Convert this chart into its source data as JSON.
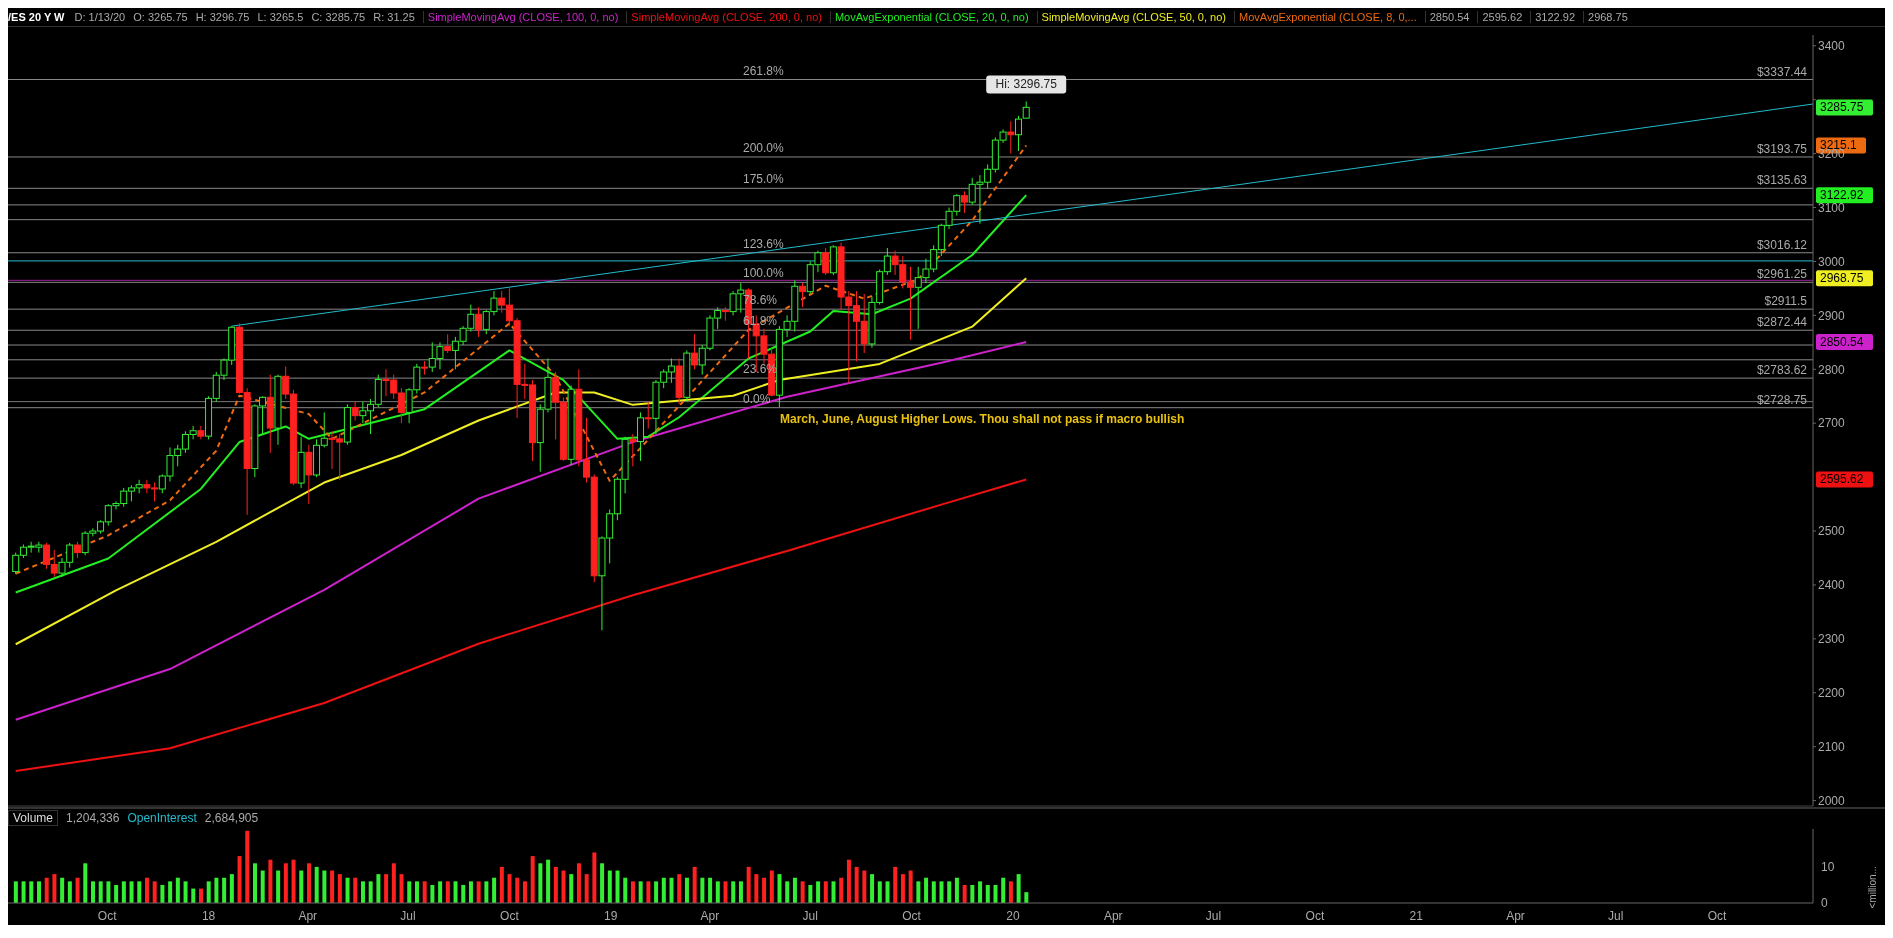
{
  "chart_data": [
    {
      "type": "candlestick",
      "title": "/ES 20 Y W",
      "legend": "top",
      "tick_labels": "y",
      "xlim": [
        "2017-07-03",
        "2021-12-27"
      ],
      "ylim": [
        1990,
        3420
      ],
      "yticks": [
        2000,
        2100,
        2200,
        2300,
        2400,
        2500,
        2700,
        2800,
        2900,
        3000,
        3100,
        3200,
        {
          "value": 3300,
          "label": null
        },
        3400
      ],
      "x": [
        "2017-07-10",
        "2017-07-17",
        "2017-07-24",
        "2017-07-31",
        "2017-08-07",
        "2017-08-14",
        "2017-08-21",
        "2017-08-28",
        "2017-09-04",
        "2017-09-11",
        "2017-09-18",
        "2017-09-25",
        "2017-10-02",
        "2017-10-09",
        "2017-10-16",
        "2017-10-23",
        "2017-10-30",
        "2017-11-06",
        "2017-11-13",
        "2017-11-20",
        "2017-11-27",
        "2017-12-04",
        "2017-12-11",
        "2017-12-18",
        "2017-12-25",
        "2018-01-01",
        "2018-01-08",
        "2018-01-15",
        "2018-01-22",
        "2018-01-29",
        "2018-02-05",
        "2018-02-12",
        "2018-02-19",
        "2018-02-26",
        "2018-03-05",
        "2018-03-12",
        "2018-03-19",
        "2018-03-26",
        "2018-04-02",
        "2018-04-09",
        "2018-04-16",
        "2018-04-23",
        "2018-04-30",
        "2018-05-07",
        "2018-05-14",
        "2018-05-21",
        "2018-05-28",
        "2018-06-04",
        "2018-06-11",
        "2018-06-18",
        "2018-06-25",
        "2018-07-02",
        "2018-07-09",
        "2018-07-16",
        "2018-07-23",
        "2018-07-30",
        "2018-08-06",
        "2018-08-13",
        "2018-08-20",
        "2018-08-27",
        "2018-09-03",
        "2018-09-10",
        "2018-09-17",
        "2018-09-24",
        "2018-10-01",
        "2018-10-08",
        "2018-10-15",
        "2018-10-22",
        "2018-10-29",
        "2018-11-05",
        "2018-11-12",
        "2018-11-19",
        "2018-11-26",
        "2018-12-03",
        "2018-12-10",
        "2018-12-17",
        "2018-12-24",
        "2018-12-31",
        "2019-01-07",
        "2019-01-14",
        "2019-01-21",
        "2019-01-28",
        "2019-02-04",
        "2019-02-11",
        "2019-02-18",
        "2019-02-25",
        "2019-03-04",
        "2019-03-11",
        "2019-03-18",
        "2019-03-25",
        "2019-04-01",
        "2019-04-08",
        "2019-04-15",
        "2019-04-22",
        "2019-04-29",
        "2019-05-06",
        "2019-05-13",
        "2019-05-20",
        "2019-05-27",
        "2019-06-03",
        "2019-06-10",
        "2019-06-17",
        "2019-06-24",
        "2019-07-01",
        "2019-07-08",
        "2019-07-15",
        "2019-07-22",
        "2019-07-29",
        "2019-08-05",
        "2019-08-12",
        "2019-08-19",
        "2019-08-26",
        "2019-09-02",
        "2019-09-09",
        "2019-09-16",
        "2019-09-23",
        "2019-09-30",
        "2019-10-07",
        "2019-10-14",
        "2019-10-21",
        "2019-10-28",
        "2019-11-04",
        "2019-11-11",
        "2019-11-18",
        "2019-11-25",
        "2019-12-02",
        "2019-12-09",
        "2019-12-16",
        "2019-12-23",
        "2019-12-30",
        "2020-01-06",
        "2020-01-13"
      ],
      "ohlc": [
        [
          2425,
          2460,
          2420,
          2455
        ],
        [
          2455,
          2475,
          2450,
          2470
        ],
        [
          2470,
          2480,
          2460,
          2472
        ],
        [
          2470,
          2480,
          2460,
          2474
        ],
        [
          2474,
          2478,
          2430,
          2438
        ],
        [
          2438,
          2465,
          2415,
          2422
        ],
        [
          2422,
          2450,
          2415,
          2442
        ],
        [
          2442,
          2478,
          2432,
          2474
        ],
        [
          2474,
          2480,
          2450,
          2460
        ],
        [
          2460,
          2500,
          2455,
          2496
        ],
        [
          2496,
          2505,
          2490,
          2500
        ],
        [
          2500,
          2520,
          2495,
          2517
        ],
        [
          2517,
          2550,
          2510,
          2547
        ],
        [
          2547,
          2555,
          2540,
          2551
        ],
        [
          2551,
          2580,
          2545,
          2574
        ],
        [
          2574,
          2585,
          2555,
          2580
        ],
        [
          2580,
          2595,
          2570,
          2586
        ],
        [
          2586,
          2595,
          2570,
          2580
        ],
        [
          2580,
          2590,
          2555,
          2578
        ],
        [
          2578,
          2605,
          2570,
          2602
        ],
        [
          2602,
          2655,
          2592,
          2640
        ],
        [
          2640,
          2660,
          2620,
          2652
        ],
        [
          2652,
          2685,
          2645,
          2679
        ],
        [
          2679,
          2695,
          2670,
          2686
        ],
        [
          2686,
          2695,
          2670,
          2676
        ],
        [
          2676,
          2750,
          2670,
          2746
        ],
        [
          2746,
          2795,
          2740,
          2789
        ],
        [
          2789,
          2820,
          2780,
          2817
        ],
        [
          2817,
          2880,
          2808,
          2878
        ],
        [
          2878,
          2885,
          2755,
          2757
        ],
        [
          2757,
          2765,
          2530,
          2616
        ],
        [
          2616,
          2735,
          2600,
          2732
        ],
        [
          2732,
          2750,
          2680,
          2748
        ],
        [
          2748,
          2790,
          2645,
          2691
        ],
        [
          2691,
          2790,
          2660,
          2787
        ],
        [
          2787,
          2805,
          2745,
          2754
        ],
        [
          2754,
          2762,
          2585,
          2589
        ],
        [
          2589,
          2675,
          2580,
          2646
        ],
        [
          2646,
          2660,
          2550,
          2604
        ],
        [
          2604,
          2670,
          2600,
          2659
        ],
        [
          2659,
          2720,
          2655,
          2672
        ],
        [
          2672,
          2685,
          2615,
          2671
        ],
        [
          2671,
          2680,
          2595,
          2665
        ],
        [
          2665,
          2735,
          2660,
          2729
        ],
        [
          2729,
          2740,
          2705,
          2714
        ],
        [
          2714,
          2740,
          2700,
          2723
        ],
        [
          2723,
          2745,
          2680,
          2735
        ],
        [
          2735,
          2790,
          2730,
          2781
        ],
        [
          2781,
          2800,
          2750,
          2780
        ],
        [
          2780,
          2790,
          2745,
          2756
        ],
        [
          2756,
          2765,
          2700,
          2720
        ],
        [
          2720,
          2765,
          2700,
          2762
        ],
        [
          2762,
          2810,
          2755,
          2804
        ],
        [
          2804,
          2815,
          2790,
          2804
        ],
        [
          2804,
          2850,
          2795,
          2820
        ],
        [
          2820,
          2850,
          2800,
          2842
        ],
        [
          2842,
          2865,
          2830,
          2835
        ],
        [
          2835,
          2860,
          2800,
          2852
        ],
        [
          2852,
          2880,
          2845,
          2876
        ],
        [
          2876,
          2920,
          2870,
          2902
        ],
        [
          2902,
          2915,
          2860,
          2874
        ],
        [
          2874,
          2910,
          2865,
          2907
        ],
        [
          2907,
          2945,
          2900,
          2932
        ],
        [
          2932,
          2945,
          2905,
          2919
        ],
        [
          2919,
          2950,
          2880,
          2890
        ],
        [
          2890,
          2895,
          2710,
          2772
        ],
        [
          2772,
          2810,
          2745,
          2771
        ],
        [
          2771,
          2780,
          2630,
          2664
        ],
        [
          2664,
          2735,
          2610,
          2726
        ],
        [
          2726,
          2820,
          2720,
          2785
        ],
        [
          2785,
          2795,
          2670,
          2739
        ],
        [
          2739,
          2748,
          2630,
          2633
        ],
        [
          2633,
          2770,
          2622,
          2763
        ],
        [
          2763,
          2800,
          2620,
          2632
        ],
        [
          2632,
          2710,
          2590,
          2600
        ],
        [
          2600,
          2605,
          2405,
          2417
        ],
        [
          2417,
          2490,
          2316,
          2487
        ],
        [
          2487,
          2540,
          2440,
          2532
        ],
        [
          2532,
          2600,
          2520,
          2596
        ],
        [
          2596,
          2675,
          2570,
          2670
        ],
        [
          2670,
          2680,
          2620,
          2666
        ],
        [
          2666,
          2720,
          2630,
          2710
        ],
        [
          2710,
          2740,
          2690,
          2709
        ],
        [
          2709,
          2780,
          2680,
          2776
        ],
        [
          2776,
          2800,
          2765,
          2795
        ],
        [
          2795,
          2820,
          2775,
          2806
        ],
        [
          2806,
          2820,
          2735,
          2748
        ],
        [
          2748,
          2835,
          2740,
          2830
        ],
        [
          2830,
          2865,
          2800,
          2808
        ],
        [
          2808,
          2845,
          2790,
          2839
        ],
        [
          2839,
          2900,
          2835,
          2895
        ],
        [
          2895,
          2915,
          2875,
          2909
        ],
        [
          2909,
          2915,
          2890,
          2907
        ],
        [
          2907,
          2945,
          2900,
          2940
        ],
        [
          2940,
          2960,
          2905,
          2947
        ],
        [
          2947,
          2950,
          2820,
          2884
        ],
        [
          2884,
          2900,
          2795,
          2862
        ],
        [
          2862,
          2875,
          2810,
          2828
        ],
        [
          2828,
          2840,
          2750,
          2752
        ],
        [
          2752,
          2880,
          2730,
          2874
        ],
        [
          2874,
          2900,
          2860,
          2889
        ],
        [
          2889,
          2965,
          2870,
          2954
        ],
        [
          2954,
          2960,
          2915,
          2944
        ],
        [
          2944,
          3000,
          2940,
          2994
        ],
        [
          2994,
          3020,
          2980,
          3016
        ],
        [
          3016,
          3025,
          2975,
          2979
        ],
        [
          2979,
          3030,
          2975,
          3027
        ],
        [
          3027,
          3035,
          2910,
          2934
        ],
        [
          2934,
          2945,
          2775,
          2918
        ],
        [
          2918,
          2945,
          2815,
          2889
        ],
        [
          2889,
          2940,
          2830,
          2847
        ],
        [
          2847,
          2935,
          2840,
          2924
        ],
        [
          2924,
          2985,
          2920,
          2981
        ],
        [
          2981,
          3025,
          2975,
          3010
        ],
        [
          3010,
          3020,
          2975,
          2994
        ],
        [
          2994,
          3010,
          2950,
          2962
        ],
        [
          2962,
          2990,
          2855,
          2952
        ],
        [
          2952,
          2990,
          2875,
          2970
        ],
        [
          2970,
          3005,
          2960,
          2986
        ],
        [
          2986,
          3030,
          2980,
          3022
        ],
        [
          3022,
          3070,
          3010,
          3067
        ],
        [
          3067,
          3100,
          3060,
          3093
        ],
        [
          3093,
          3125,
          3085,
          3122
        ],
        [
          3122,
          3130,
          3090,
          3110
        ],
        [
          3110,
          3155,
          3105,
          3143
        ],
        [
          3143,
          3160,
          3070,
          3147
        ],
        [
          3147,
          3180,
          3135,
          3171
        ],
        [
          3171,
          3230,
          3165,
          3225
        ],
        [
          3225,
          3245,
          3220,
          3240
        ],
        [
          3240,
          3260,
          3200,
          3235
        ],
        [
          3235,
          3270,
          3205,
          3264
        ],
        [
          3265.75,
          3296.75,
          3265.5,
          3285.75
        ]
      ],
      "colors": [
        "#33ee33",
        "#33ee33",
        "#33ee33",
        "#33ee33",
        "#ff2020",
        "#ff2020",
        "#33ee33",
        "#33ee33",
        "#ff2020",
        "#33ee33",
        "#33ee33",
        "#33ee33",
        "#33ee33",
        "#33ee33",
        "#33ee33",
        "#33ee33",
        "#33ee33",
        "#ff2020",
        "#ff2020",
        "#33ee33",
        "#33ee33",
        "#33ee33",
        "#33ee33",
        "#33ee33",
        "#ff2020",
        "#33ee33",
        "#33ee33",
        "#33ee33",
        "#33ee33",
        "#ff2020",
        "#ff2020",
        "#33ee33",
        "#33ee33",
        "#ff2020",
        "#33ee33",
        "#ff2020",
        "#ff2020",
        "#33ee33",
        "#ff2020",
        "#33ee33",
        "#33ee33",
        "#ff2020",
        "#ff2020",
        "#33ee33",
        "#ff2020",
        "#33ee33",
        "#33ee33",
        "#33ee33",
        "#ff2020",
        "#ff2020",
        "#ff2020",
        "#33ee33",
        "#33ee33",
        "#ff2020",
        "#33ee33",
        "#33ee33",
        "#ff2020",
        "#33ee33",
        "#33ee33",
        "#33ee33",
        "#ff2020",
        "#33ee33",
        "#33ee33",
        "#ff2020",
        "#ff2020",
        "#ff2020",
        "#ff2020",
        "#ff2020",
        "#33ee33",
        "#33ee33",
        "#ff2020",
        "#ff2020",
        "#33ee33",
        "#ff2020",
        "#ff2020",
        "#ff2020",
        "#33ee33",
        "#33ee33",
        "#33ee33",
        "#33ee33",
        "#ff2020",
        "#33ee33",
        "#ff2020",
        "#33ee33",
        "#33ee33",
        "#33ee33",
        "#ff2020",
        "#33ee33",
        "#ff2020",
        "#33ee33",
        "#33ee33",
        "#33ee33",
        "#ff2020",
        "#33ee33",
        "#33ee33",
        "#ff2020",
        "#ff2020",
        "#ff2020",
        "#ff2020",
        "#33ee33",
        "#33ee33",
        "#33ee33",
        "#ff2020",
        "#33ee33",
        "#33ee33",
        "#ff2020",
        "#33ee33",
        "#ff2020",
        "#ff2020",
        "#ff2020",
        "#ff2020",
        "#33ee33",
        "#33ee33",
        "#33ee33",
        "#ff2020",
        "#ff2020",
        "#ff2020",
        "#33ee33",
        "#33ee33",
        "#33ee33",
        "#33ee33",
        "#33ee33",
        "#33ee33",
        "#ff2020",
        "#33ee33",
        "#33ee33",
        "#33ee33",
        "#33ee33",
        "#33ee33",
        "#ff2020",
        "#33ee33",
        "#33ee33"
      ],
      "value_labels": [
        null,
        null,
        null,
        null,
        null,
        null,
        null,
        null,
        null,
        null,
        null,
        null,
        null,
        null,
        null,
        null,
        null,
        null,
        null,
        null,
        null,
        null,
        null,
        null,
        null,
        null,
        null,
        null,
        null,
        null,
        null,
        null,
        null,
        null,
        null,
        null,
        null,
        null,
        null,
        null,
        null,
        null,
        null,
        null,
        null,
        null,
        null,
        null,
        null,
        null,
        null,
        null,
        null,
        null,
        null,
        null,
        null,
        null,
        null,
        null,
        null,
        null,
        null,
        null,
        null,
        null,
        null,
        null,
        null,
        null,
        null,
        null,
        null,
        null,
        null,
        null,
        null,
        null,
        null,
        null,
        null,
        null,
        null,
        null,
        null,
        null,
        null,
        null,
        null,
        null,
        null,
        null,
        null,
        null,
        null,
        null,
        null,
        null,
        null,
        null,
        null,
        null,
        null,
        null,
        null,
        null,
        null,
        null,
        null,
        null,
        null,
        null,
        null,
        null,
        null,
        null,
        null,
        null,
        null,
        null,
        null,
        null,
        null,
        null,
        null,
        null,
        null,
        null,
        null,
        null,
        null,
        "3285.75"
      ],
      "series": [
        {
          "type": "line",
          "name": "SimpleMovingAvg (CLOSE, 100, 0, no)",
          "color": "#cc22cc",
          "x": [
            "2017-07-10",
            "2017-11-27",
            "2018-04-16",
            "2018-09-03",
            "2019-01-21",
            "2019-06-10",
            "2019-10-28",
            "2020-01-13"
          ],
          "values": [
            2150,
            2244,
            2391,
            2560,
            2665,
            2749,
            2812,
            2850.54
          ]
        },
        {
          "type": "line",
          "name": "SimpleMovingAvg (CLOSE, 200, 0, no)",
          "color": "#ee1111",
          "x": [
            "2017-07-10",
            "2017-11-27",
            "2018-04-16",
            "2018-09-03",
            "2019-01-21",
            "2019-06-10",
            "2019-10-28",
            "2020-01-13"
          ],
          "values": [
            2055,
            2097,
            2181,
            2291,
            2381,
            2463,
            2549,
            2595.62
          ]
        },
        {
          "type": "line",
          "name": "MovAvgExponential (CLOSE, 20, 0, no)",
          "color": "#22ee22",
          "x": [
            "2017-07-10",
            "2017-10-02",
            "2017-12-25",
            "2018-01-29",
            "2018-03-12",
            "2018-04-02",
            "2018-07-16",
            "2018-10-01",
            "2018-11-19",
            "2019-01-07",
            "2019-02-04",
            "2019-03-04",
            "2019-05-06",
            "2019-07-01",
            "2019-07-22",
            "2019-08-26",
            "2019-09-30",
            "2019-11-25",
            "2020-01-13"
          ],
          "values": [
            2386,
            2449,
            2578,
            2665,
            2694,
            2671,
            2726,
            2835,
            2780,
            2671,
            2675,
            2711,
            2820,
            2870,
            2908,
            2902,
            2931,
            3012,
            3122.92
          ]
        },
        {
          "type": "line",
          "name": "SimpleMovingAvg (CLOSE, 50, 0, no)",
          "color": "#eeee22",
          "x": [
            "2017-07-10",
            "2017-10-09",
            "2018-01-08",
            "2018-04-16",
            "2018-06-25",
            "2018-09-03",
            "2018-11-12",
            "2018-12-17",
            "2019-01-21",
            "2019-04-22",
            "2019-06-03",
            "2019-09-02",
            "2019-11-25",
            "2020-01-13"
          ],
          "values": [
            2290,
            2390,
            2480,
            2590,
            2641,
            2705,
            2757,
            2757,
            2734,
            2751,
            2780,
            2810,
            2879,
            2968.75
          ]
        },
        {
          "type": "line",
          "name": "MovAvgExponential (CLOSE, 8, 0,...",
          "color": "#ee6a10",
          "line_style": "dashed",
          "x": [
            "2017-07-10",
            "2017-10-02",
            "2017-11-27",
            "2018-01-08",
            "2018-01-29",
            "2018-04-02",
            "2018-04-23",
            "2018-07-16",
            "2018-10-01",
            "2018-11-12",
            "2018-12-31",
            "2019-01-28",
            "2019-03-18",
            "2019-05-06",
            "2019-07-15",
            "2019-08-19",
            "2019-10-07",
            "2019-11-25",
            "2020-01-13"
          ],
          "values": [
            2421,
            2492,
            2557,
            2649,
            2751,
            2717,
            2671,
            2757,
            2885,
            2787,
            2593,
            2654,
            2763,
            2873,
            2955,
            2931,
            2967,
            3076,
            3215.1
          ]
        },
        {
          "type": "line",
          "color": "#22bbcc",
          "x": [
            "2018-01-22",
            "2021-12-27"
          ],
          "values": [
            2880,
            3292
          ]
        }
      ],
      "ref_lines": [
        {
          "axis": "y",
          "value": 3337.44,
          "label": "$3337.44",
          "color": "#888888"
        },
        {
          "axis": "y",
          "value": 3193.75,
          "label": "$3193.75",
          "color": "#888888"
        },
        {
          "axis": "y",
          "value": 3135.63,
          "label": "$3135.63",
          "color": "#888888"
        },
        {
          "axis": "y",
          "value": 3104.9,
          "color": "#888888"
        },
        {
          "axis": "y",
          "value": 3077.5,
          "color": "#888888"
        },
        {
          "axis": "y",
          "value": 3016.12,
          "label": "$3016.12",
          "color": "#888888"
        },
        {
          "axis": "y",
          "value": 3001,
          "color": "#22bbcc"
        },
        {
          "axis": "y",
          "value": 2965,
          "color": "#a020a0"
        },
        {
          "axis": "y",
          "value": 2961.25,
          "label": "$2961.25",
          "color": "#888888"
        },
        {
          "axis": "y",
          "value": 2911.5,
          "label": "$2911.5",
          "color": "#888888"
        },
        {
          "axis": "y",
          "value": 2872.44,
          "label": "$2872.44",
          "color": "#888888"
        },
        {
          "axis": "y",
          "value": 2845,
          "color": "#888888"
        },
        {
          "axis": "y",
          "value": 2817.6,
          "color": "#888888"
        },
        {
          "axis": "y",
          "value": 2783.62,
          "label": "$2783.62",
          "color": "#888888"
        },
        {
          "axis": "y",
          "value": 2740,
          "color": "#777777"
        },
        {
          "axis": "y",
          "value": 2728.75,
          "label": "$2728.75",
          "color": "#888888"
        }
      ],
      "annotations": [
        "D: 1/13/20",
        "O: 3265.75",
        "H: 3296.75",
        "L: 3265.5",
        "C: 3285.75",
        "R: 31.25",
        "2850.54",
        "2595.62",
        "3122.92",
        "2968.75",
        {
          "text": "261.8%",
          "y": 3337.44
        },
        {
          "text": "200.0%",
          "y": 3193.75
        },
        {
          "text": "175.0%",
          "y": 3135.63
        },
        {
          "text": "123.6%",
          "y": 3016.12
        },
        {
          "text": "100.0%",
          "y": 2961.25
        },
        {
          "text": "78.6%",
          "y": 2911.5
        },
        {
          "text": "61.8%",
          "y": 2872.44
        },
        {
          "text": "23.6%",
          "y": 2783.62
        },
        {
          "text": "0.0%",
          "y": 2728.75
        },
        {
          "text": "Hi: 3296.75",
          "x": "2020-01-13",
          "y": 3296.75
        },
        "March, June, August Higher Lows. Thou shall not pass if macro bullish",
        "2850.54",
        "2595.62",
        "3122.92",
        "2968.75",
        "3215.1"
      ]
    },
    {
      "type": "bar",
      "ylabel": "<million...",
      "xlim": [
        "2017-07-03",
        "2021-12-27"
      ],
      "xticks": [
        {
          "value": "2017-10-01",
          "label": "Oct"
        },
        {
          "value": "2018-01-01",
          "label": "18"
        },
        {
          "value": "2018-04-01",
          "label": "Apr"
        },
        {
          "value": "2018-07-01",
          "label": "Jul"
        },
        {
          "value": "2018-10-01",
          "label": "Oct"
        },
        {
          "value": "2019-01-01",
          "label": "19"
        },
        {
          "value": "2019-04-01",
          "label": "Apr"
        },
        {
          "value": "2019-07-01",
          "label": "Jul"
        },
        {
          "value": "2019-10-01",
          "label": "Oct"
        },
        {
          "value": "2020-01-01",
          "label": "20"
        },
        {
          "value": "2020-04-01",
          "label": "Apr"
        },
        {
          "value": "2020-07-01",
          "label": "Jul"
        },
        {
          "value": "2020-10-01",
          "label": "Oct"
        },
        {
          "value": "2021-01-01",
          "label": "21"
        },
        {
          "value": "2021-04-01",
          "label": "Apr"
        },
        {
          "value": "2021-07-01",
          "label": "Jul"
        },
        {
          "value": "2021-10-01",
          "label": "Oct"
        }
      ],
      "ylim": [
        0,
        20.5
      ],
      "yticks": [
        0,
        10
      ],
      "x": [
        "2017-07-10",
        "2017-07-17",
        "2017-07-24",
        "2017-07-31",
        "2017-08-07",
        "2017-08-14",
        "2017-08-21",
        "2017-08-28",
        "2017-09-04",
        "2017-09-11",
        "2017-09-18",
        "2017-09-25",
        "2017-10-02",
        "2017-10-09",
        "2017-10-16",
        "2017-10-23",
        "2017-10-30",
        "2017-11-06",
        "2017-11-13",
        "2017-11-20",
        "2017-11-27",
        "2017-12-04",
        "2017-12-11",
        "2017-12-18",
        "2017-12-25",
        "2018-01-01",
        "2018-01-08",
        "2018-01-15",
        "2018-01-22",
        "2018-01-29",
        "2018-02-05",
        "2018-02-12",
        "2018-02-19",
        "2018-02-26",
        "2018-03-05",
        "2018-03-12",
        "2018-03-19",
        "2018-03-26",
        "2018-04-02",
        "2018-04-09",
        "2018-04-16",
        "2018-04-23",
        "2018-04-30",
        "2018-05-07",
        "2018-05-14",
        "2018-05-21",
        "2018-05-28",
        "2018-06-04",
        "2018-06-11",
        "2018-06-18",
        "2018-06-25",
        "2018-07-02",
        "2018-07-09",
        "2018-07-16",
        "2018-07-23",
        "2018-07-30",
        "2018-08-06",
        "2018-08-13",
        "2018-08-20",
        "2018-08-27",
        "2018-09-03",
        "2018-09-10",
        "2018-09-17",
        "2018-09-24",
        "2018-10-01",
        "2018-10-08",
        "2018-10-15",
        "2018-10-22",
        "2018-10-29",
        "2018-11-05",
        "2018-11-12",
        "2018-11-19",
        "2018-11-26",
        "2018-12-03",
        "2018-12-10",
        "2018-12-17",
        "2018-12-24",
        "2018-12-31",
        "2019-01-07",
        "2019-01-14",
        "2019-01-21",
        "2019-01-28",
        "2019-02-04",
        "2019-02-11",
        "2019-02-18",
        "2019-02-25",
        "2019-03-04",
        "2019-03-11",
        "2019-03-18",
        "2019-03-25",
        "2019-04-01",
        "2019-04-08",
        "2019-04-15",
        "2019-04-22",
        "2019-04-29",
        "2019-05-06",
        "2019-05-13",
        "2019-05-20",
        "2019-05-27",
        "2019-06-03",
        "2019-06-10",
        "2019-06-17",
        "2019-06-24",
        "2019-07-01",
        "2019-07-08",
        "2019-07-15",
        "2019-07-22",
        "2019-07-29",
        "2019-08-05",
        "2019-08-12",
        "2019-08-19",
        "2019-08-26",
        "2019-09-02",
        "2019-09-09",
        "2019-09-16",
        "2019-09-23",
        "2019-09-30",
        "2019-10-07",
        "2019-10-14",
        "2019-10-21",
        "2019-10-28",
        "2019-11-04",
        "2019-11-11",
        "2019-11-18",
        "2019-11-25",
        "2019-12-02",
        "2019-12-09",
        "2019-12-16",
        "2019-12-23",
        "2019-12-30",
        "2020-01-06",
        "2020-01-13"
      ],
      "series": [
        {
          "name": "Volume",
          "values": [
            6,
            6,
            6,
            6,
            7,
            8,
            7,
            6,
            7,
            11,
            6,
            6,
            6,
            5,
            6,
            6,
            6,
            7,
            6,
            5,
            6,
            7,
            6,
            4,
            4,
            6,
            7,
            7,
            8,
            13,
            20,
            11,
            9,
            12,
            9,
            11,
            12,
            9,
            11,
            10,
            9,
            9,
            8,
            7,
            7,
            6,
            6,
            8,
            8,
            11,
            8,
            6,
            6,
            6,
            5,
            6,
            6,
            6,
            5,
            6,
            6,
            6,
            7,
            10,
            8,
            7,
            6,
            13,
            11,
            12,
            10,
            9,
            8,
            11,
            8,
            14,
            11,
            9,
            9,
            7,
            6,
            6,
            6,
            6,
            7,
            7,
            8,
            7,
            10,
            7,
            7,
            6,
            6,
            6,
            6,
            10,
            8,
            7,
            9,
            8,
            6,
            7,
            6,
            5,
            6,
            6,
            6,
            7,
            12,
            10,
            9,
            8,
            6,
            6,
            10,
            8,
            9,
            6,
            7,
            6,
            6,
            6,
            7,
            5,
            5,
            6,
            5,
            5,
            7,
            6,
            8,
            3
          ],
          "colors": [
            "#33ee33",
            "#33ee33",
            "#33ee33",
            "#33ee33",
            "#ff2020",
            "#ff2020",
            "#33ee33",
            "#33ee33",
            "#ff2020",
            "#33ee33",
            "#33ee33",
            "#33ee33",
            "#33ee33",
            "#33ee33",
            "#33ee33",
            "#33ee33",
            "#33ee33",
            "#ff2020",
            "#ff2020",
            "#33ee33",
            "#33ee33",
            "#33ee33",
            "#33ee33",
            "#33ee33",
            "#ff2020",
            "#33ee33",
            "#33ee33",
            "#33ee33",
            "#33ee33",
            "#ff2020",
            "#ff2020",
            "#33ee33",
            "#33ee33",
            "#ff2020",
            "#33ee33",
            "#ff2020",
            "#ff2020",
            "#33ee33",
            "#ff2020",
            "#33ee33",
            "#33ee33",
            "#ff2020",
            "#ff2020",
            "#33ee33",
            "#ff2020",
            "#33ee33",
            "#33ee33",
            "#33ee33",
            "#ff2020",
            "#ff2020",
            "#ff2020",
            "#33ee33",
            "#33ee33",
            "#ff2020",
            "#33ee33",
            "#33ee33",
            "#ff2020",
            "#33ee33",
            "#33ee33",
            "#33ee33",
            "#ff2020",
            "#33ee33",
            "#33ee33",
            "#ff2020",
            "#ff2020",
            "#ff2020",
            "#ff2020",
            "#ff2020",
            "#33ee33",
            "#33ee33",
            "#ff2020",
            "#ff2020",
            "#33ee33",
            "#ff2020",
            "#ff2020",
            "#ff2020",
            "#33ee33",
            "#33ee33",
            "#33ee33",
            "#33ee33",
            "#ff2020",
            "#33ee33",
            "#ff2020",
            "#33ee33",
            "#33ee33",
            "#33ee33",
            "#ff2020",
            "#33ee33",
            "#ff2020",
            "#33ee33",
            "#33ee33",
            "#33ee33",
            "#ff2020",
            "#33ee33",
            "#33ee33",
            "#ff2020",
            "#ff2020",
            "#ff2020",
            "#ff2020",
            "#33ee33",
            "#33ee33",
            "#33ee33",
            "#ff2020",
            "#33ee33",
            "#33ee33",
            "#ff2020",
            "#33ee33",
            "#ff2020",
            "#ff2020",
            "#ff2020",
            "#ff2020",
            "#33ee33",
            "#33ee33",
            "#33ee33",
            "#ff2020",
            "#ff2020",
            "#ff2020",
            "#33ee33",
            "#33ee33",
            "#33ee33",
            "#33ee33",
            "#33ee33",
            "#33ee33",
            "#ff2020",
            "#33ee33",
            "#33ee33",
            "#33ee33",
            "#33ee33",
            "#33ee33",
            "#ff2020",
            "#33ee33",
            "#33ee33"
          ]
        }
      ],
      "annotations": [
        "1,204,336",
        "OpenInterest",
        "2,684,905"
      ]
    }
  ]
}
